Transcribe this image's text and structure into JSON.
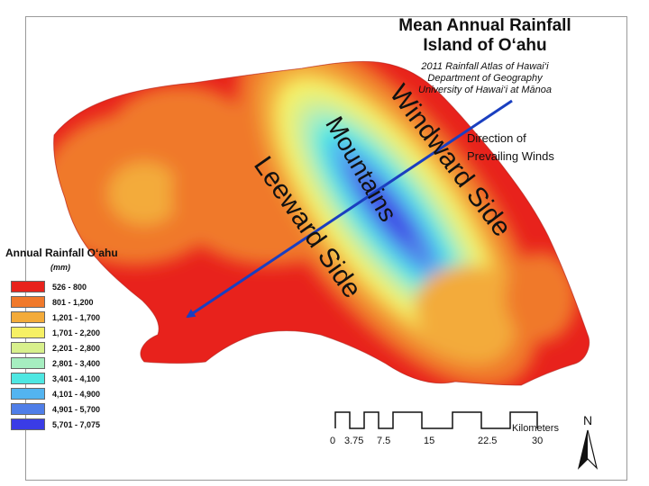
{
  "title": {
    "main_line1": "Mean Annual Rainfall",
    "main_line2": "Island of O‘ahu",
    "source_line1": "2011 Rainfall Atlas of Hawai‘i",
    "source_line2": "Department of Geography",
    "source_line3": "University of Hawai‘i at Mānoa"
  },
  "legend": {
    "title": "Annual Rainfall O‘ahu",
    "unit": "(mm)",
    "items": [
      {
        "label": "526 - 800",
        "color": "#e8221c"
      },
      {
        "label": "801 - 1,200",
        "color": "#f0792b"
      },
      {
        "label": "1,201 - 1,700",
        "color": "#f3ab3a"
      },
      {
        "label": "1,701 - 2,200",
        "color": "#f6f064"
      },
      {
        "label": "2,201 - 2,800",
        "color": "#d8f08c"
      },
      {
        "label": "2,801 - 3,400",
        "color": "#a6eec0"
      },
      {
        "label": "3,401 - 4,100",
        "color": "#4ee7e2"
      },
      {
        "label": "4,101 - 4,900",
        "color": "#53b4f0"
      },
      {
        "label": "4,901 - 5,700",
        "color": "#4f7ee8"
      },
      {
        "label": "5,701 - 7,075",
        "color": "#3a3ce6"
      }
    ]
  },
  "annotations": {
    "windward": "Windward Side",
    "mountains": "Mountains",
    "leeward": "Leeward Side",
    "direction_line1": "Direction of",
    "direction_line2": "Prevailing Winds"
  },
  "scale": {
    "title": "Kilometers",
    "ticks": [
      "0",
      "3.75",
      "7.5",
      "15",
      "22.5",
      "30"
    ]
  },
  "north_label": "N",
  "colors": {
    "arrow": "#1a3fc0"
  }
}
